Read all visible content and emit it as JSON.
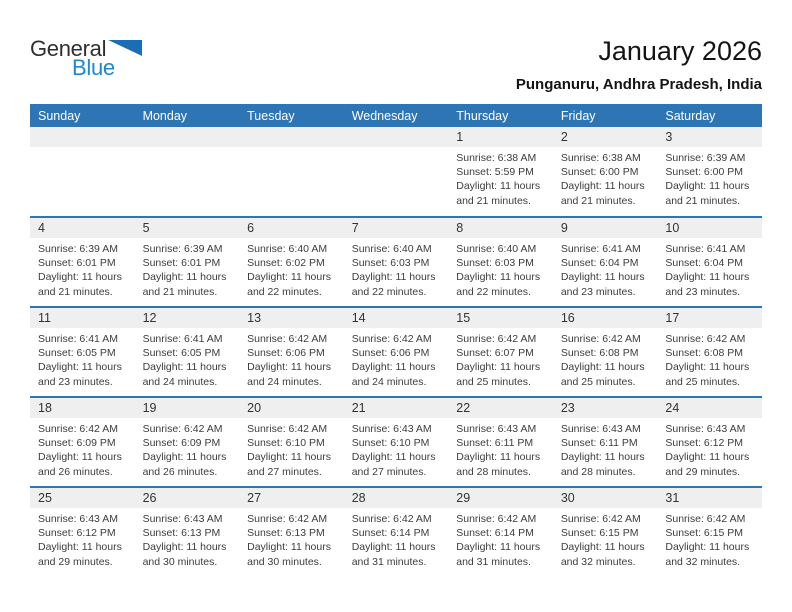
{
  "logo": {
    "general": "General",
    "blue": "Blue"
  },
  "header": {
    "title": "January 2026",
    "subtitle": "Punganuru, Andhra Pradesh, India"
  },
  "colors": {
    "accent_blue": "#2E75B6",
    "logo_blue": "#1E88D2",
    "logo_triangle_blue": "#1B6DB5",
    "day_strip_gray": "#EFEFEF",
    "header_text": "#FFFFFF",
    "body_text": "#3D3D3D"
  },
  "weekdays": [
    "Sunday",
    "Monday",
    "Tuesday",
    "Wednesday",
    "Thursday",
    "Friday",
    "Saturday"
  ],
  "weeks": [
    [
      {
        "day": "",
        "sunrise": "",
        "sunset": "",
        "daylight1": "",
        "daylight2": ""
      },
      {
        "day": "",
        "sunrise": "",
        "sunset": "",
        "daylight1": "",
        "daylight2": ""
      },
      {
        "day": "",
        "sunrise": "",
        "sunset": "",
        "daylight1": "",
        "daylight2": ""
      },
      {
        "day": "",
        "sunrise": "",
        "sunset": "",
        "daylight1": "",
        "daylight2": ""
      },
      {
        "day": "1",
        "sunrise": "Sunrise: 6:38 AM",
        "sunset": "Sunset: 5:59 PM",
        "daylight1": "Daylight: 11 hours",
        "daylight2": "and 21 minutes."
      },
      {
        "day": "2",
        "sunrise": "Sunrise: 6:38 AM",
        "sunset": "Sunset: 6:00 PM",
        "daylight1": "Daylight: 11 hours",
        "daylight2": "and 21 minutes."
      },
      {
        "day": "3",
        "sunrise": "Sunrise: 6:39 AM",
        "sunset": "Sunset: 6:00 PM",
        "daylight1": "Daylight: 11 hours",
        "daylight2": "and 21 minutes."
      }
    ],
    [
      {
        "day": "4",
        "sunrise": "Sunrise: 6:39 AM",
        "sunset": "Sunset: 6:01 PM",
        "daylight1": "Daylight: 11 hours",
        "daylight2": "and 21 minutes."
      },
      {
        "day": "5",
        "sunrise": "Sunrise: 6:39 AM",
        "sunset": "Sunset: 6:01 PM",
        "daylight1": "Daylight: 11 hours",
        "daylight2": "and 21 minutes."
      },
      {
        "day": "6",
        "sunrise": "Sunrise: 6:40 AM",
        "sunset": "Sunset: 6:02 PM",
        "daylight1": "Daylight: 11 hours",
        "daylight2": "and 22 minutes."
      },
      {
        "day": "7",
        "sunrise": "Sunrise: 6:40 AM",
        "sunset": "Sunset: 6:03 PM",
        "daylight1": "Daylight: 11 hours",
        "daylight2": "and 22 minutes."
      },
      {
        "day": "8",
        "sunrise": "Sunrise: 6:40 AM",
        "sunset": "Sunset: 6:03 PM",
        "daylight1": "Daylight: 11 hours",
        "daylight2": "and 22 minutes."
      },
      {
        "day": "9",
        "sunrise": "Sunrise: 6:41 AM",
        "sunset": "Sunset: 6:04 PM",
        "daylight1": "Daylight: 11 hours",
        "daylight2": "and 23 minutes."
      },
      {
        "day": "10",
        "sunrise": "Sunrise: 6:41 AM",
        "sunset": "Sunset: 6:04 PM",
        "daylight1": "Daylight: 11 hours",
        "daylight2": "and 23 minutes."
      }
    ],
    [
      {
        "day": "11",
        "sunrise": "Sunrise: 6:41 AM",
        "sunset": "Sunset: 6:05 PM",
        "daylight1": "Daylight: 11 hours",
        "daylight2": "and 23 minutes."
      },
      {
        "day": "12",
        "sunrise": "Sunrise: 6:41 AM",
        "sunset": "Sunset: 6:05 PM",
        "daylight1": "Daylight: 11 hours",
        "daylight2": "and 24 minutes."
      },
      {
        "day": "13",
        "sunrise": "Sunrise: 6:42 AM",
        "sunset": "Sunset: 6:06 PM",
        "daylight1": "Daylight: 11 hours",
        "daylight2": "and 24 minutes."
      },
      {
        "day": "14",
        "sunrise": "Sunrise: 6:42 AM",
        "sunset": "Sunset: 6:06 PM",
        "daylight1": "Daylight: 11 hours",
        "daylight2": "and 24 minutes."
      },
      {
        "day": "15",
        "sunrise": "Sunrise: 6:42 AM",
        "sunset": "Sunset: 6:07 PM",
        "daylight1": "Daylight: 11 hours",
        "daylight2": "and 25 minutes."
      },
      {
        "day": "16",
        "sunrise": "Sunrise: 6:42 AM",
        "sunset": "Sunset: 6:08 PM",
        "daylight1": "Daylight: 11 hours",
        "daylight2": "and 25 minutes."
      },
      {
        "day": "17",
        "sunrise": "Sunrise: 6:42 AM",
        "sunset": "Sunset: 6:08 PM",
        "daylight1": "Daylight: 11 hours",
        "daylight2": "and 25 minutes."
      }
    ],
    [
      {
        "day": "18",
        "sunrise": "Sunrise: 6:42 AM",
        "sunset": "Sunset: 6:09 PM",
        "daylight1": "Daylight: 11 hours",
        "daylight2": "and 26 minutes."
      },
      {
        "day": "19",
        "sunrise": "Sunrise: 6:42 AM",
        "sunset": "Sunset: 6:09 PM",
        "daylight1": "Daylight: 11 hours",
        "daylight2": "and 26 minutes."
      },
      {
        "day": "20",
        "sunrise": "Sunrise: 6:42 AM",
        "sunset": "Sunset: 6:10 PM",
        "daylight1": "Daylight: 11 hours",
        "daylight2": "and 27 minutes."
      },
      {
        "day": "21",
        "sunrise": "Sunrise: 6:43 AM",
        "sunset": "Sunset: 6:10 PM",
        "daylight1": "Daylight: 11 hours",
        "daylight2": "and 27 minutes."
      },
      {
        "day": "22",
        "sunrise": "Sunrise: 6:43 AM",
        "sunset": "Sunset: 6:11 PM",
        "daylight1": "Daylight: 11 hours",
        "daylight2": "and 28 minutes."
      },
      {
        "day": "23",
        "sunrise": "Sunrise: 6:43 AM",
        "sunset": "Sunset: 6:11 PM",
        "daylight1": "Daylight: 11 hours",
        "daylight2": "and 28 minutes."
      },
      {
        "day": "24",
        "sunrise": "Sunrise: 6:43 AM",
        "sunset": "Sunset: 6:12 PM",
        "daylight1": "Daylight: 11 hours",
        "daylight2": "and 29 minutes."
      }
    ],
    [
      {
        "day": "25",
        "sunrise": "Sunrise: 6:43 AM",
        "sunset": "Sunset: 6:12 PM",
        "daylight1": "Daylight: 11 hours",
        "daylight2": "and 29 minutes."
      },
      {
        "day": "26",
        "sunrise": "Sunrise: 6:43 AM",
        "sunset": "Sunset: 6:13 PM",
        "daylight1": "Daylight: 11 hours",
        "daylight2": "and 30 minutes."
      },
      {
        "day": "27",
        "sunrise": "Sunrise: 6:42 AM",
        "sunset": "Sunset: 6:13 PM",
        "daylight1": "Daylight: 11 hours",
        "daylight2": "and 30 minutes."
      },
      {
        "day": "28",
        "sunrise": "Sunrise: 6:42 AM",
        "sunset": "Sunset: 6:14 PM",
        "daylight1": "Daylight: 11 hours",
        "daylight2": "and 31 minutes."
      },
      {
        "day": "29",
        "sunrise": "Sunrise: 6:42 AM",
        "sunset": "Sunset: 6:14 PM",
        "daylight1": "Daylight: 11 hours",
        "daylight2": "and 31 minutes."
      },
      {
        "day": "30",
        "sunrise": "Sunrise: 6:42 AM",
        "sunset": "Sunset: 6:15 PM",
        "daylight1": "Daylight: 11 hours",
        "daylight2": "and 32 minutes."
      },
      {
        "day": "31",
        "sunrise": "Sunrise: 6:42 AM",
        "sunset": "Sunset: 6:15 PM",
        "daylight1": "Daylight: 11 hours",
        "daylight2": "and 32 minutes."
      }
    ]
  ]
}
